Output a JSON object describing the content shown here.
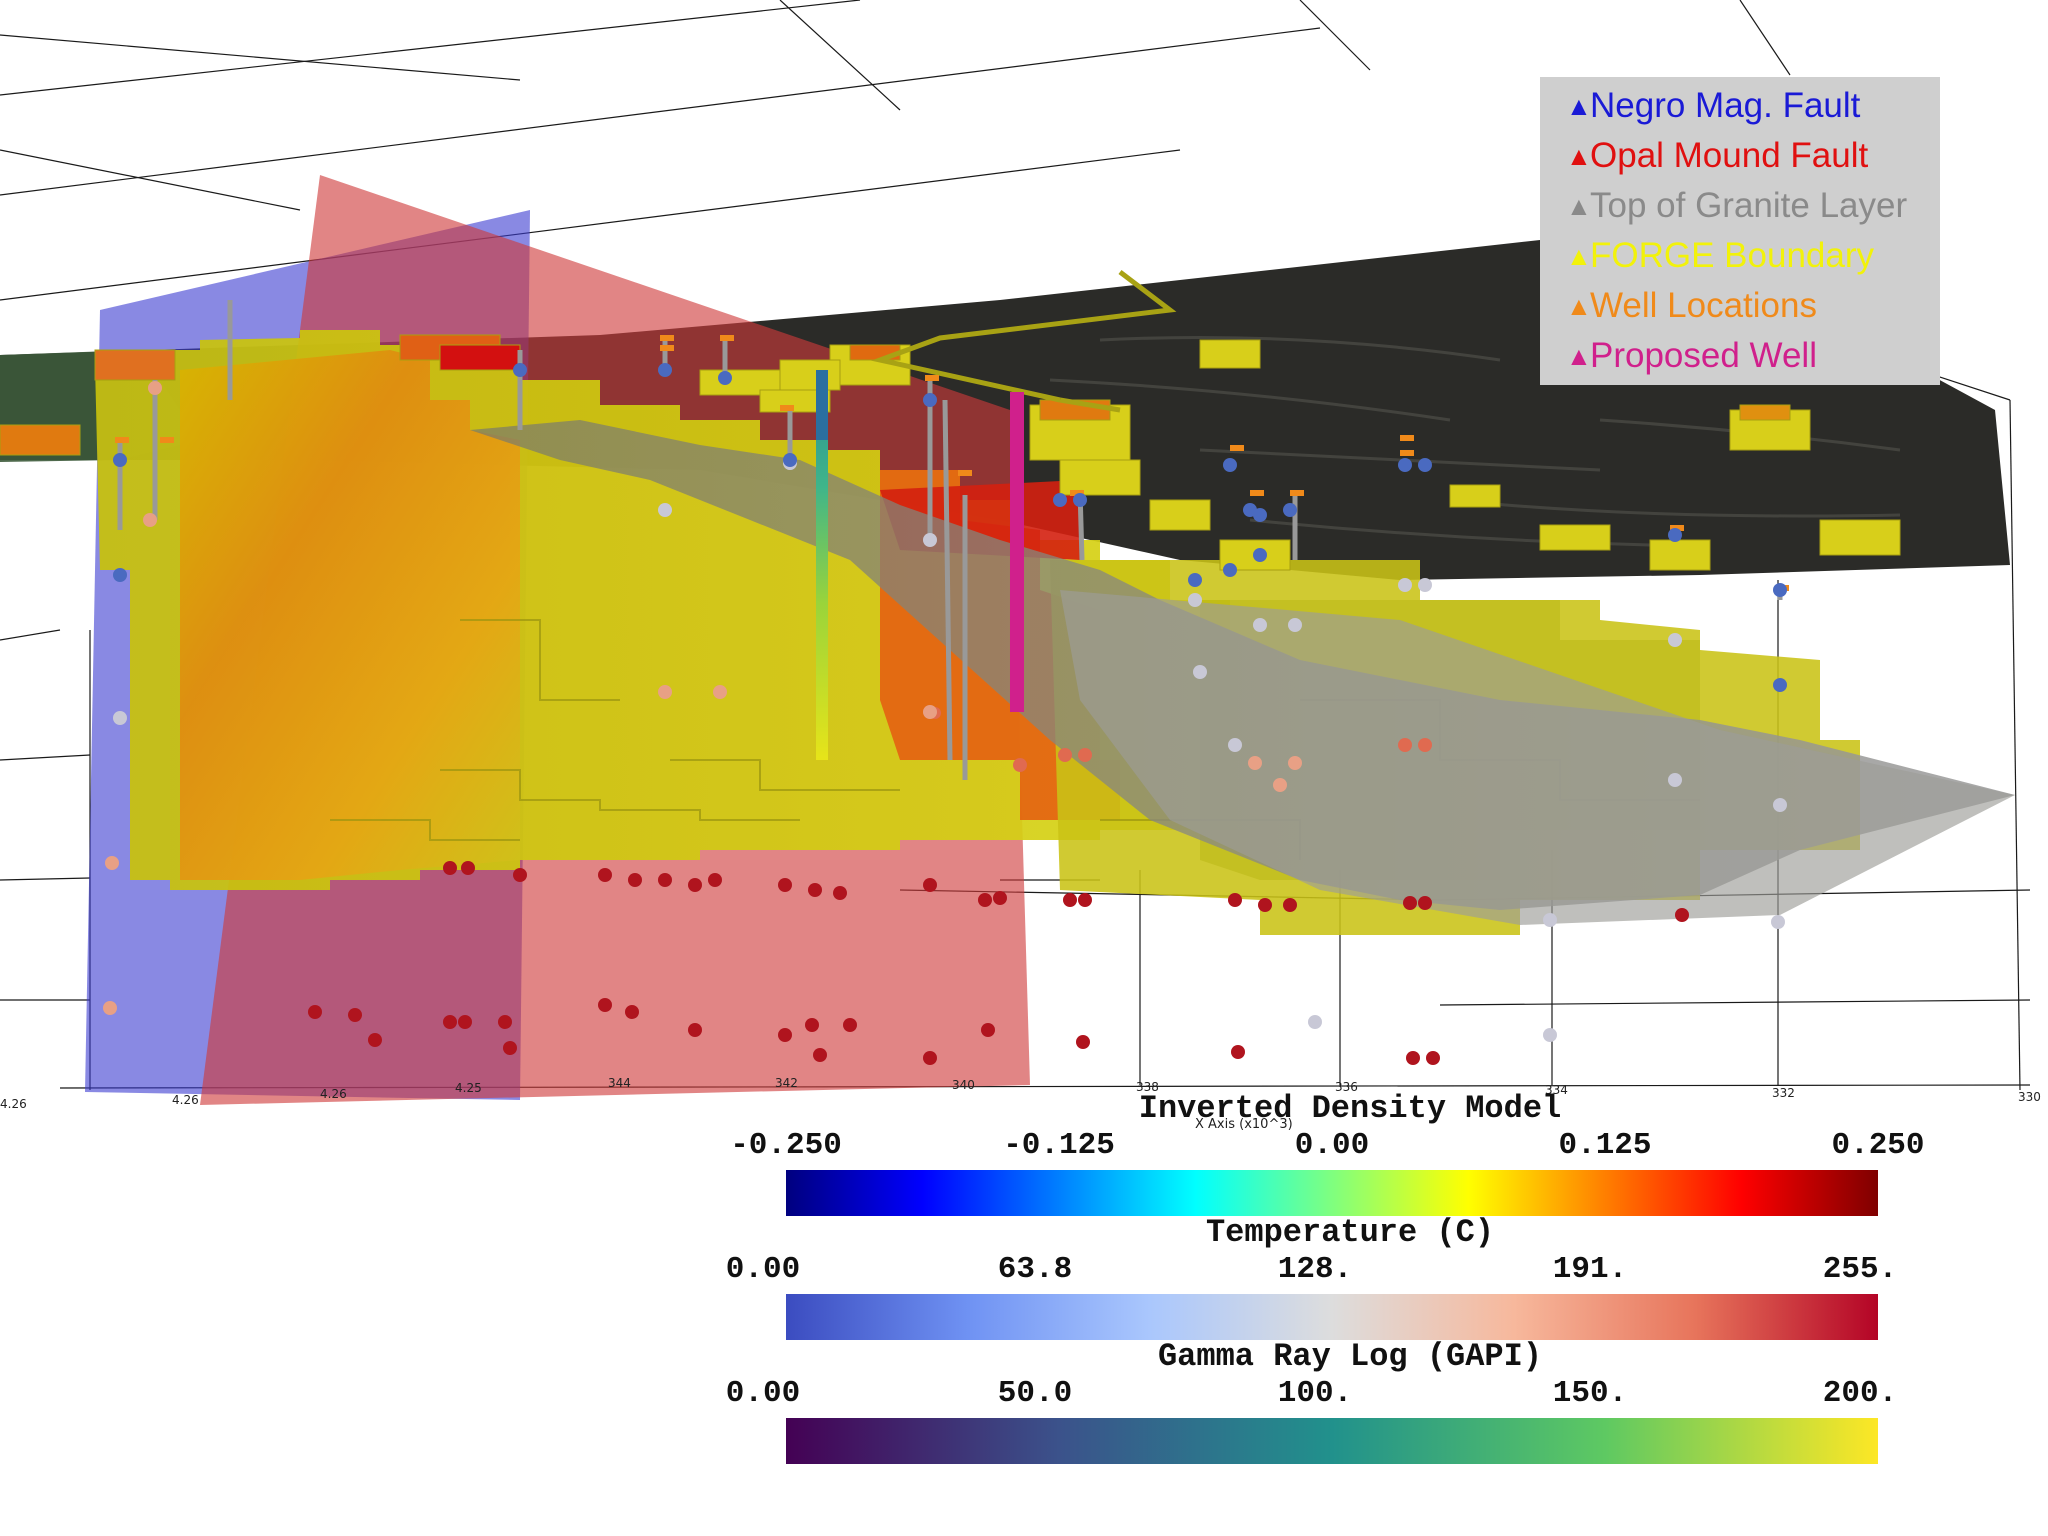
{
  "legend": {
    "items": [
      {
        "label": "Negro Mag. Fault",
        "color": "#1a1ad6"
      },
      {
        "label": "Opal Mound Fault",
        "color": "#e01010"
      },
      {
        "label": "Top of Granite Layer",
        "color": "#8a8a8a"
      },
      {
        "label": "FORGE Boundary",
        "color": "#f2f20a"
      },
      {
        "label": "Well Locations",
        "color": "#f08a1a"
      },
      {
        "label": "Proposed Well",
        "color": "#d0208c"
      }
    ]
  },
  "axis": {
    "title": "X Axis (x10^3)",
    "ticks": [
      "4.26",
      "4.26",
      "4.26",
      "4.25",
      "344",
      "342",
      "340",
      "338",
      "336",
      "334",
      "332",
      "330"
    ]
  },
  "colorbars": [
    {
      "title": "Inverted Density Model",
      "ticks": [
        "-0.250",
        "-0.125",
        "0.00",
        "0.125",
        "0.250"
      ],
      "colormap": "jet"
    },
    {
      "title": "Temperature (C)",
      "ticks": [
        "0.00",
        "63.8",
        "128.",
        "191.",
        "255."
      ],
      "colormap": "coolwarm"
    },
    {
      "title": "Gamma Ray Log (GAPI)",
      "ticks": [
        "0.00",
        "50.0",
        "100.",
        "150.",
        "200."
      ],
      "colormap": "viridis"
    }
  ]
}
